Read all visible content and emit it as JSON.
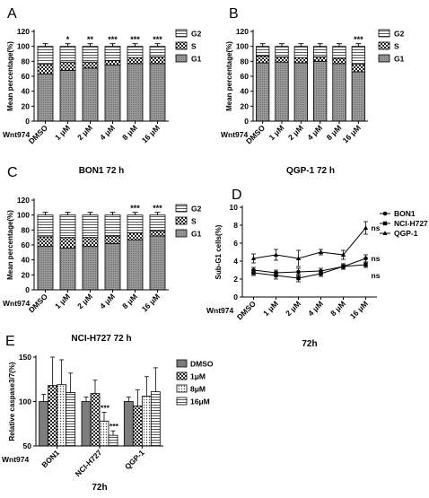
{
  "chart_data": [
    {
      "panel": "A",
      "type": "bar",
      "stacked": true,
      "title": "BON1 72 h",
      "ylabel": "Mean percentage(%)",
      "xgroup_label": "Wnt974",
      "ylim": [
        0,
        120
      ],
      "yticks": [
        0,
        20,
        40,
        60,
        80,
        100,
        120
      ],
      "categories": [
        "DMSO",
        "1 μM",
        "2 μM",
        "4 μM",
        "8 μM",
        "16 μM"
      ],
      "series": [
        {
          "name": "G1",
          "values": [
            63,
            68,
            71,
            75,
            77,
            77
          ]
        },
        {
          "name": "S",
          "values": [
            13,
            11,
            8,
            6,
            8,
            9
          ]
        },
        {
          "name": "G2",
          "values": [
            24,
            21,
            21,
            19,
            15,
            14
          ]
        }
      ],
      "significance": [
        "",
        "*",
        "**",
        "***",
        "***",
        "***"
      ],
      "legend_position": "right"
    },
    {
      "panel": "B",
      "type": "bar",
      "stacked": true,
      "title": "QGP-1 72 h",
      "ylabel": "Mean percentage(%)",
      "xgroup_label": "Wnt974",
      "ylim": [
        0,
        120
      ],
      "yticks": [
        0,
        20,
        40,
        60,
        80,
        100,
        120
      ],
      "categories": [
        "DMSO",
        "1 μM",
        "2 μM",
        "4 μM",
        "8 μM",
        "16 μM"
      ],
      "series": [
        {
          "name": "G1",
          "values": [
            78,
            79,
            78,
            80,
            77,
            66
          ]
        },
        {
          "name": "S",
          "values": [
            9,
            7,
            7,
            6,
            7,
            10
          ]
        },
        {
          "name": "G2",
          "values": [
            13,
            14,
            15,
            14,
            16,
            24
          ]
        }
      ],
      "significance": [
        "",
        "",
        "",
        "",
        "",
        "***"
      ],
      "legend_position": "right"
    },
    {
      "panel": "C",
      "type": "bar",
      "stacked": true,
      "title": "NCI-H727 72 h",
      "ylabel": "Mean percentage(%)",
      "xgroup_label": "Wnt974",
      "ylim": [
        0,
        120
      ],
      "yticks": [
        0,
        20,
        40,
        60,
        80,
        100,
        120
      ],
      "categories": [
        "DMSO",
        "1 μM",
        "2 μM",
        "4 μM",
        "8 μM",
        "16 μM"
      ],
      "series": [
        {
          "name": "G1",
          "values": [
            58,
            56,
            58,
            62,
            67,
            72
          ]
        },
        {
          "name": "S",
          "values": [
            13,
            14,
            12,
            10,
            9,
            7
          ]
        },
        {
          "name": "G2",
          "values": [
            29,
            30,
            30,
            28,
            24,
            21
          ]
        }
      ],
      "significance": [
        "",
        "",
        "",
        "",
        "***",
        "***"
      ],
      "legend_position": "right"
    },
    {
      "panel": "D",
      "type": "line",
      "title": "72h",
      "ylabel": "Sub-G1 cells(%)",
      "xgroup_label": "Wnt974",
      "ylim": [
        0,
        10
      ],
      "yticks": [
        0,
        2,
        4,
        6,
        8,
        10
      ],
      "categories": [
        "DMSO",
        "1 μM",
        "2 μM",
        "4 μM",
        "8 μM",
        "16 μM"
      ],
      "series": [
        {
          "name": "BON1",
          "values": [
            3.0,
            2.7,
            2.8,
            2.9,
            3.4,
            4.3
          ],
          "errors": [
            0.3,
            0.3,
            0.4,
            0.3,
            0.3,
            0.4
          ]
        },
        {
          "name": "NCI-H727",
          "values": [
            2.7,
            2.4,
            2.1,
            2.6,
            3.4,
            3.6
          ],
          "errors": [
            0.3,
            0.4,
            0.4,
            0.3,
            0.3,
            0.3
          ]
        },
        {
          "name": "QGP-1",
          "values": [
            4.3,
            4.7,
            4.3,
            5.0,
            4.7,
            7.7
          ],
          "errors": [
            0.5,
            0.6,
            0.9,
            0.3,
            0.5,
            0.7
          ]
        }
      ],
      "end_labels": [
        "ns",
        "ns",
        "ns"
      ],
      "legend_position": "right"
    },
    {
      "panel": "E",
      "type": "bar",
      "title": "72h",
      "ylabel": "Relative caspase3/7(%)",
      "xgroup_label": "Wnt974",
      "ylim": [
        50,
        150
      ],
      "yticks": [
        50,
        100,
        150
      ],
      "categories": [
        "BON1",
        "NCI-H727",
        "QGP-1"
      ],
      "series": [
        {
          "name": "DMSO",
          "values": [
            100,
            100,
            100
          ],
          "errors": [
            8,
            5,
            5
          ]
        },
        {
          "name": "1μM",
          "values": [
            118,
            109,
            95
          ],
          "errors": [
            32,
            15,
            18
          ]
        },
        {
          "name": "8μM",
          "values": [
            119,
            78,
            106
          ],
          "errors": [
            28,
            10,
            22
          ]
        },
        {
          "name": "16μM",
          "values": [
            110,
            62,
            111
          ],
          "errors": [
            22,
            5,
            27
          ]
        }
      ],
      "significance": [
        [
          "",
          "",
          "",
          ""
        ],
        [
          "",
          "",
          "***",
          "***"
        ],
        [
          "",
          "",
          "",
          ""
        ]
      ],
      "legend_position": "right"
    }
  ],
  "panel_letters": [
    "A",
    "B",
    "C",
    "D",
    "E"
  ]
}
